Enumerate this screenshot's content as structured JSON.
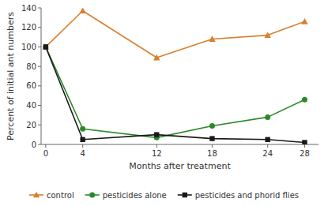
{
  "chart_data": {
    "type": "line",
    "x": [
      0,
      4,
      12,
      18,
      24,
      28
    ],
    "series": [
      {
        "name": "control",
        "color": "#d97f2e",
        "marker": "triangle",
        "values": [
          100,
          137,
          89,
          108,
          112,
          126
        ]
      },
      {
        "name": "pesticides alone",
        "color": "#2a8a2a",
        "marker": "circle",
        "values": [
          100,
          16,
          7,
          19,
          28,
          46
        ]
      },
      {
        "name": "pesticides and phorid flies",
        "color": "#1a1a1a",
        "marker": "square",
        "values": [
          100,
          5,
          10,
          6,
          5,
          2
        ]
      }
    ],
    "x_label": "Months after treatment",
    "y_label": "Percent of initial ant numbers",
    "xlim": [
      -0.5,
      29.5
    ],
    "xticks": [
      0,
      4,
      12,
      18,
      24,
      28
    ],
    "ylim": [
      0,
      140
    ],
    "yticks": [
      0,
      20,
      40,
      60,
      80,
      100,
      120,
      140
    ],
    "grid": false,
    "legend": "bottom"
  }
}
